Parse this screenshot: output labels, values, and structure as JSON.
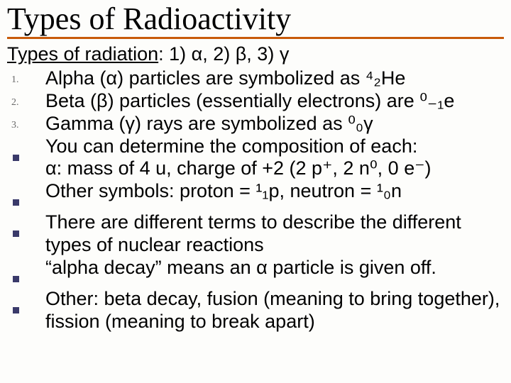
{
  "colors": {
    "title_underline": "#c85a0a",
    "bullet_square": "#3a3a6a",
    "number_marker": "#6a6a6a",
    "text": "#000000",
    "background": "#fdfdfb"
  },
  "typography": {
    "title_font": "Times New Roman",
    "title_size_pt": 44,
    "body_font": "Arial",
    "body_size_pt": 27,
    "marker_size_pt": 14
  },
  "title": "Types of Radioactivity",
  "subtitle": {
    "lead_underlined": "Types of radiation",
    "rest": ":  1) α, 2) β, 3) γ"
  },
  "markers": {
    "n1": "1.",
    "n2": "2.",
    "n3": "3."
  },
  "items": {
    "i1": "Alpha (α) particles are symbolized as ⁴₂He",
    "i2": "Beta (β) particles (essentially electrons) are ⁰₋₁e",
    "i3": "Gamma (γ) rays are symbolized as ⁰₀γ",
    "i4": "You can determine the composition of each:",
    "i4b": "α: mass of 4 u, charge of +2 (2 p⁺, 2 n⁰, 0 e⁻)",
    "i5": "Other symbols: proton = ¹₁p, neutron = ¹₀n",
    "i6": "There are different terms to describe the different types of nuclear reactions",
    "i7": "“alpha decay” means an α particle is given off.",
    "i8": "Other: beta decay, fusion (meaning to bring together), fission (meaning to break apart)"
  }
}
